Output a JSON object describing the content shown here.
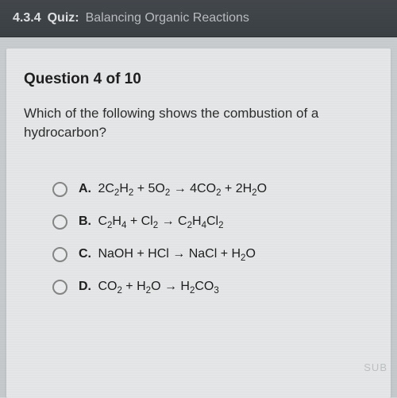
{
  "header": {
    "section": "4.3.4",
    "label": "Quiz:",
    "title": "Balancing Organic Reactions",
    "bg_color": "#3a3f44",
    "text_color": "#e8eaec",
    "subtitle_color": "#c0c4c8"
  },
  "question": {
    "number_label": "Question 4 of 10",
    "text": "Which of the following shows the combustion of a hydrocarbon?",
    "number_fontsize": 19,
    "text_fontsize": 17
  },
  "options": [
    {
      "letter": "A.",
      "formula_html": "2C<sub>2</sub>H<sub>2</sub> + 5O<sub>2</sub> → 4CO<sub>2</sub> + 2H<sub>2</sub>O"
    },
    {
      "letter": "B.",
      "formula_html": "C<sub>2</sub>H<sub>4</sub> + Cl<sub>2</sub> → C<sub>2</sub>H<sub>4</sub>Cl<sub>2</sub>"
    },
    {
      "letter": "C.",
      "formula_html": "NaOH + HCl → NaCl + H<sub>2</sub>O"
    },
    {
      "letter": "D.",
      "formula_html": "CO<sub>2</sub> + H<sub>2</sub>O → H<sub>2</sub>CO<sub>3</sub>"
    }
  ],
  "styling": {
    "body_bg": "#d4d8db",
    "card_bg": "#eef0f1",
    "radio_border": "#888888",
    "text_color": "#1a1a1a",
    "option_fontsize": 16,
    "option_gap": 22,
    "radio_size": 19
  },
  "footer": {
    "submit_hint": "SUB"
  }
}
